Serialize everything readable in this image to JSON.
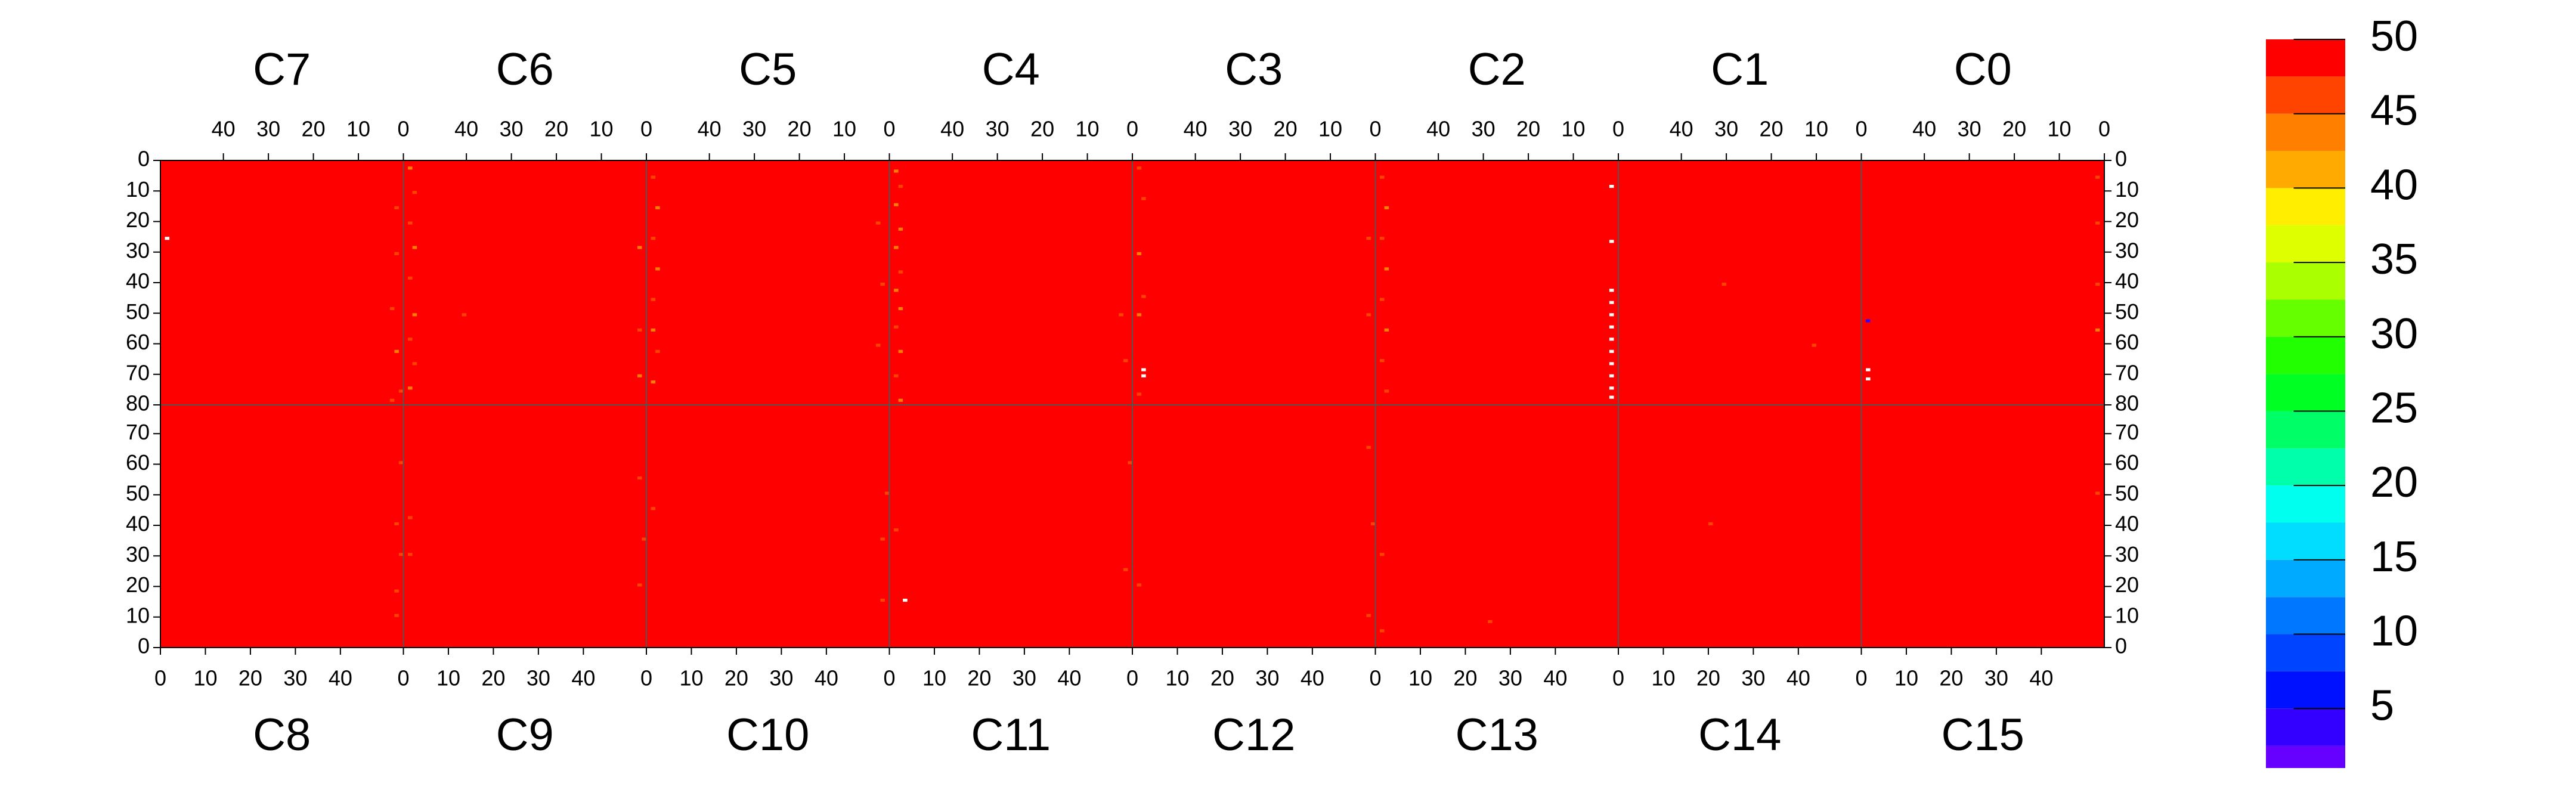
{
  "chart_data": {
    "type": "heatmap",
    "panels": [
      {
        "name": "C7",
        "row": "top",
        "value": 50,
        "points": [
          [
            52,
            25,
            null
          ],
          [
            1,
            15,
            46
          ],
          [
            1,
            30,
            45
          ],
          [
            2,
            48,
            46
          ],
          [
            1,
            62,
            44
          ],
          [
            0,
            75,
            46
          ],
          [
            2,
            78,
            45
          ]
        ]
      },
      {
        "name": "C6",
        "row": "top",
        "value": 50,
        "points": [
          [
            52,
            2,
            44
          ],
          [
            51,
            10,
            45
          ],
          [
            52,
            20,
            46
          ],
          [
            51,
            28,
            44
          ],
          [
            52,
            38,
            45
          ],
          [
            51,
            50,
            44
          ],
          [
            52,
            58,
            46
          ],
          [
            51,
            66,
            45
          ],
          [
            52,
            74,
            44
          ],
          [
            40,
            50,
            46
          ],
          [
            1,
            28,
            44
          ],
          [
            1,
            55,
            45
          ],
          [
            1,
            70,
            44
          ]
        ]
      },
      {
        "name": "C5",
        "row": "top",
        "value": 50,
        "points": [
          [
            52,
            5,
            46
          ],
          [
            51,
            15,
            44
          ],
          [
            52,
            25,
            45
          ],
          [
            51,
            35,
            44
          ],
          [
            52,
            45,
            46
          ],
          [
            52,
            55,
            44
          ],
          [
            51,
            62,
            45
          ],
          [
            52,
            72,
            44
          ],
          [
            2,
            20,
            45
          ],
          [
            1,
            40,
            46
          ],
          [
            2,
            60,
            45
          ]
        ]
      },
      {
        "name": "C4",
        "row": "top",
        "value": 50,
        "points": [
          [
            52,
            3,
            44
          ],
          [
            51,
            8,
            45
          ],
          [
            52,
            14,
            43
          ],
          [
            51,
            22,
            44
          ],
          [
            52,
            28,
            44
          ],
          [
            51,
            36,
            45
          ],
          [
            52,
            42,
            43
          ],
          [
            51,
            48,
            44
          ],
          [
            52,
            54,
            45
          ],
          [
            51,
            62,
            44
          ],
          [
            52,
            70,
            45
          ],
          [
            51,
            78,
            44
          ],
          [
            2,
            50,
            46
          ],
          [
            1,
            65,
            45
          ]
        ]
      },
      {
        "name": "C3",
        "row": "top",
        "value": 50,
        "points": [
          [
            52,
            2,
            46
          ],
          [
            51,
            12,
            45
          ],
          [
            52,
            30,
            44
          ],
          [
            51,
            44,
            45
          ],
          [
            52,
            50,
            44
          ],
          [
            51,
            68,
            null
          ],
          [
            51,
            70,
            null
          ],
          [
            52,
            76,
            45
          ],
          [
            1,
            25,
            46
          ],
          [
            1,
            50,
            45
          ]
        ]
      },
      {
        "name": "C2",
        "row": "top",
        "value": 50,
        "points": [
          [
            52,
            5,
            45
          ],
          [
            51,
            15,
            44
          ],
          [
            52,
            25,
            46
          ],
          [
            51,
            35,
            44
          ],
          [
            52,
            45,
            45
          ],
          [
            51,
            55,
            44
          ],
          [
            52,
            65,
            46
          ],
          [
            51,
            75,
            45
          ],
          [
            1,
            8,
            null
          ],
          [
            1,
            26,
            null
          ],
          [
            1,
            42,
            null
          ],
          [
            1,
            46,
            null
          ],
          [
            1,
            50,
            null
          ],
          [
            1,
            54,
            null
          ],
          [
            1,
            58,
            null
          ],
          [
            1,
            62,
            null
          ],
          [
            1,
            66,
            null
          ],
          [
            1,
            70,
            null
          ],
          [
            1,
            74,
            null
          ],
          [
            1,
            77,
            null
          ]
        ]
      },
      {
        "name": "C1",
        "row": "top",
        "value": 50,
        "points": [
          [
            30,
            40,
            46
          ],
          [
            10,
            60,
            46
          ]
        ]
      },
      {
        "name": "C0",
        "row": "top",
        "value": 50,
        "points": [
          [
            52,
            52,
            3
          ],
          [
            52,
            68,
            null
          ],
          [
            52,
            71,
            null
          ],
          [
            1,
            5,
            45
          ],
          [
            1,
            20,
            46
          ],
          [
            1,
            40,
            45
          ],
          [
            1,
            55,
            44
          ]
        ]
      },
      {
        "name": "C8",
        "row": "bottom",
        "value": 50,
        "points": [
          [
            52,
            10,
            46
          ],
          [
            53,
            30,
            45
          ],
          [
            52,
            40,
            46
          ],
          [
            53,
            60,
            46
          ],
          [
            52,
            18,
            45
          ]
        ]
      },
      {
        "name": "C9",
        "row": "bottom",
        "value": 50,
        "points": [
          [
            52,
            20,
            46
          ],
          [
            53,
            35,
            45
          ],
          [
            52,
            55,
            46
          ],
          [
            1,
            30,
            46
          ],
          [
            1,
            42,
            45
          ]
        ]
      },
      {
        "name": "C10",
        "row": "bottom",
        "value": 50,
        "points": [
          [
            52,
            15,
            46
          ],
          [
            52,
            35,
            45
          ],
          [
            53,
            50,
            46
          ],
          [
            1,
            45,
            46
          ]
        ]
      },
      {
        "name": "C11",
        "row": "bottom",
        "value": 50,
        "points": [
          [
            3,
            15,
            null
          ],
          [
            52,
            25,
            46
          ],
          [
            53,
            60,
            45
          ],
          [
            1,
            38,
            46
          ]
        ]
      },
      {
        "name": "C12",
        "row": "bottom",
        "value": 50,
        "points": [
          [
            52,
            10,
            46
          ],
          [
            53,
            40,
            45
          ],
          [
            52,
            65,
            46
          ],
          [
            1,
            20,
            46
          ]
        ]
      },
      {
        "name": "C13",
        "row": "bottom",
        "value": 50,
        "points": [
          [
            1,
            5,
            46
          ],
          [
            1,
            30,
            45
          ],
          [
            25,
            8,
            46
          ]
        ]
      },
      {
        "name": "C14",
        "row": "bottom",
        "value": 50,
        "points": [
          [
            20,
            40,
            46
          ]
        ]
      },
      {
        "name": "C15",
        "row": "bottom",
        "value": 50,
        "points": [
          [
            52,
            50,
            46
          ]
        ]
      }
    ],
    "xlim": [
      0,
      54
    ],
    "xticks": [
      0,
      10,
      20,
      30,
      40
    ],
    "ylim": [
      0,
      80
    ],
    "yticks": [
      0,
      10,
      20,
      30,
      40,
      50,
      60,
      70,
      80
    ],
    "zlim": [
      1,
      50
    ],
    "zticks": [
      5,
      10,
      15,
      20,
      25,
      30,
      35,
      40,
      45,
      50
    ],
    "levels": [
      1,
      2.5,
      5,
      7.5,
      10,
      12.5,
      15,
      17.5,
      20,
      22.5,
      25,
      27.5,
      30,
      32.5,
      35,
      37.5,
      40,
      42.5,
      45,
      47.5,
      50
    ],
    "colors": [
      "#6600ff",
      "#3300ff",
      "#0011ff",
      "#0044ff",
      "#0077ff",
      "#00aaff",
      "#00ddff",
      "#00ffee",
      "#00ffaa",
      "#00ff66",
      "#00ff22",
      "#22ff00",
      "#66ff00",
      "#aaff00",
      "#ddff00",
      "#ffee00",
      "#ffaa00",
      "#ff7f00",
      "#ff4400",
      "#ff0000"
    ]
  }
}
